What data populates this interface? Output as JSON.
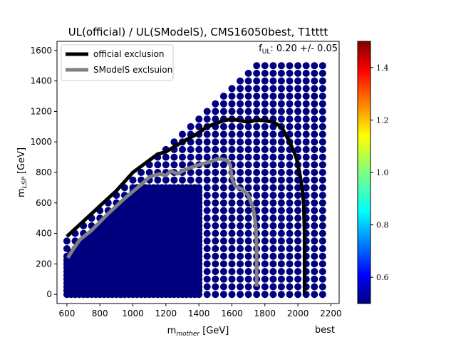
{
  "chart_data": {
    "type": "scatter",
    "title": "UL(official) / UL(SModelS), CMS16050best, T1tttt",
    "xlabel_main": "m",
    "xlabel_sub": "mother",
    "xlabel_unit": " [GeV]",
    "ylabel_main": "m",
    "ylabel_sub": "LSP",
    "ylabel_unit": " [GeV]",
    "xlim": [
      540,
      2250
    ],
    "ylim": [
      -60,
      1660
    ],
    "x_ticks": [
      600,
      800,
      1000,
      1200,
      1400,
      1600,
      1800,
      2000,
      2200
    ],
    "y_ticks": [
      0,
      200,
      400,
      600,
      800,
      1000,
      1200,
      1400,
      1600
    ],
    "annotation_left": "f",
    "annotation_sub": "UL",
    "annotation_right": ": 0.20 +/- 0.05",
    "corner_label": "best",
    "point_color": "#00007f",
    "colorbar": {
      "range": [
        0.5,
        1.5
      ],
      "ticks": [
        "0.6",
        "0.8",
        "1.0",
        "1.2",
        "1.4"
      ],
      "tick_values": [
        0.6,
        0.8,
        1.0,
        1.2,
        1.4
      ],
      "colormap": "jet"
    },
    "legend": {
      "placement": "top-left",
      "entries": [
        {
          "label": "official exclusion",
          "color": "#000000"
        },
        {
          "label": "SModelS exclsuion",
          "color": "#808080"
        }
      ]
    },
    "official_exclusion": [
      [
        600,
        380
      ],
      [
        700,
        480
      ],
      [
        800,
        580
      ],
      [
        900,
        680
      ],
      [
        1000,
        800
      ],
      [
        1100,
        880
      ],
      [
        1150,
        920
      ],
      [
        1200,
        935
      ],
      [
        1300,
        1000
      ],
      [
        1400,
        1060
      ],
      [
        1450,
        1100
      ],
      [
        1500,
        1120
      ],
      [
        1550,
        1140
      ],
      [
        1600,
        1150
      ],
      [
        1650,
        1140
      ],
      [
        1700,
        1130
      ],
      [
        1750,
        1145
      ],
      [
        1800,
        1140
      ],
      [
        1850,
        1130
      ],
      [
        1900,
        1100
      ],
      [
        1950,
        1000
      ],
      [
        1990,
        900
      ],
      [
        2010,
        800
      ],
      [
        2025,
        700
      ],
      [
        2035,
        600
      ],
      [
        2040,
        400
      ],
      [
        2040,
        0
      ]
    ],
    "smodels_exclusion": [
      [
        605,
        240
      ],
      [
        640,
        300
      ],
      [
        680,
        360
      ],
      [
        750,
        420
      ],
      [
        850,
        530
      ],
      [
        950,
        630
      ],
      [
        1050,
        720
      ],
      [
        1100,
        770
      ],
      [
        1160,
        790
      ],
      [
        1200,
        780
      ],
      [
        1230,
        810
      ],
      [
        1270,
        790
      ],
      [
        1320,
        820
      ],
      [
        1400,
        850
      ],
      [
        1470,
        870
      ],
      [
        1520,
        890
      ],
      [
        1570,
        880
      ],
      [
        1590,
        850
      ],
      [
        1600,
        760
      ],
      [
        1620,
        710
      ],
      [
        1660,
        690
      ],
      [
        1700,
        650
      ],
      [
        1730,
        560
      ],
      [
        1745,
        440
      ],
      [
        1750,
        300
      ],
      [
        1750,
        50
      ]
    ]
  }
}
